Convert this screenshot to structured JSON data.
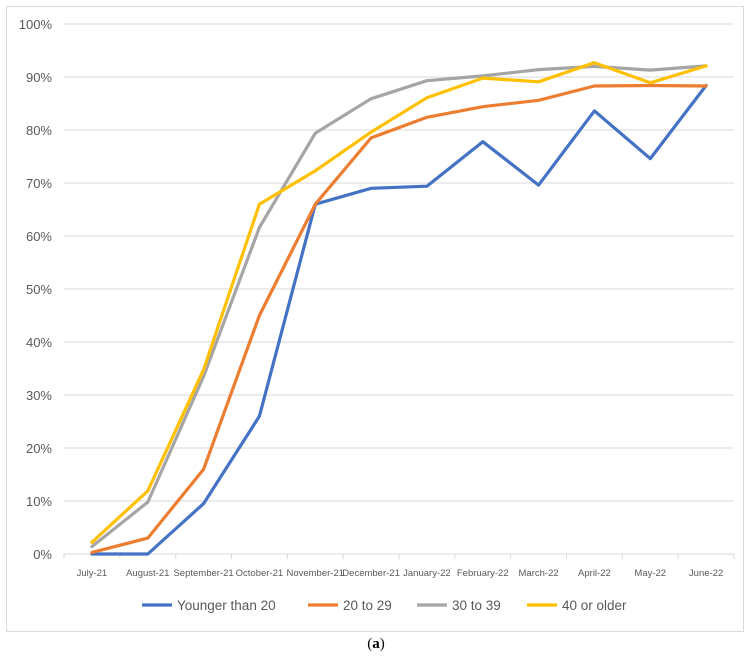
{
  "chart_data": {
    "type": "line",
    "categories": [
      "July-21",
      "August-21",
      "September-21",
      "October-21",
      "November-21",
      "December-21",
      "January-22",
      "February-22",
      "March-22",
      "April-22",
      "May-22",
      "June-22"
    ],
    "ylim": [
      0,
      100
    ],
    "yticks": [
      "0%",
      "10%",
      "20%",
      "30%",
      "40%",
      "50%",
      "60%",
      "70%",
      "80%",
      "90%",
      "100%"
    ],
    "grid": true,
    "legend_position": "bottom",
    "series": [
      {
        "name": "Younger than 20",
        "color": "#4472c4",
        "values": [
          0,
          0,
          9.5,
          26,
          66,
          69,
          69.4,
          77.8,
          69.6,
          83.6,
          74.6,
          88.4
        ]
      },
      {
        "name": "20 to 29",
        "color": "#ed7d31",
        "values": [
          0.3,
          3,
          16,
          45,
          66,
          78.5,
          82.4,
          84.4,
          85.6,
          88.3,
          88.4,
          88.3
        ]
      },
      {
        "name": "30 to 39",
        "color": "#a5a5a5",
        "values": [
          1.4,
          9.8,
          33.5,
          61.6,
          79.4,
          85.9,
          89.3,
          90.2,
          91.4,
          92,
          91.3,
          92.1
        ]
      },
      {
        "name": "40 or older",
        "color": "#ffc000",
        "values": [
          2.2,
          11.9,
          34.8,
          66,
          72.3,
          79.6,
          86.1,
          89.8,
          89.1,
          92.7,
          88.9,
          92.1
        ]
      }
    ]
  },
  "caption": {
    "open": "(",
    "letter": "a",
    "close": ")"
  }
}
